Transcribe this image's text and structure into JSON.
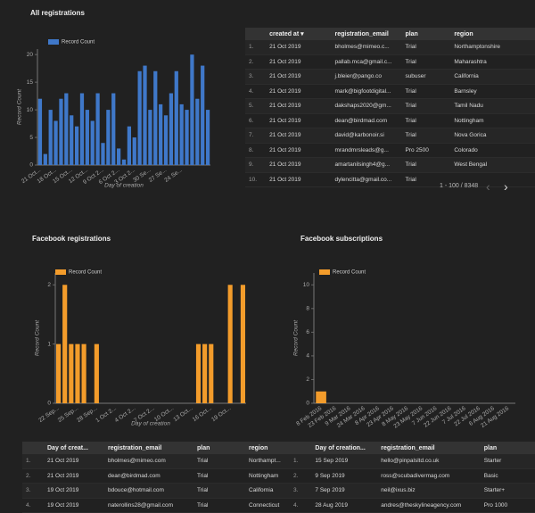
{
  "chart_data": [
    {
      "type": "bar",
      "title": "All registrations",
      "x_label": "Day of creation",
      "y_label": "Record Count",
      "legend": "top-left",
      "categories": [
        "21 Oct...",
        null,
        null,
        "18 Oct...",
        null,
        null,
        "15 Oct...",
        null,
        null,
        "12 Oct...",
        null,
        null,
        "9 Oct 2...",
        null,
        null,
        "6 Oct 2...",
        null,
        null,
        "3 Oct 2...",
        null,
        null,
        "30 Se...",
        null,
        null,
        "27 Se...",
        null,
        null,
        "24 Se...",
        null,
        null,
        null,
        null,
        null
      ],
      "series": [
        {
          "name": "Record Count",
          "color": "#3f78c9",
          "values": [
            12,
            2,
            10,
            8,
            12,
            13,
            9,
            7,
            13,
            10,
            8,
            13,
            4,
            10,
            13,
            3,
            1,
            7,
            5,
            17,
            18,
            10,
            17,
            11,
            9,
            13,
            17,
            11,
            10,
            20,
            12,
            18,
            10
          ]
        }
      ],
      "ylim": [
        0,
        21
      ],
      "yticks": [
        0,
        5,
        10,
        15,
        20
      ]
    },
    {
      "type": "bar",
      "title": "Facebook registrations",
      "x_label": "Day of creation",
      "y_label": "Record Count",
      "legend": "top-left",
      "categories": [
        "22 Sep...",
        null,
        null,
        "25 Sep...",
        null,
        null,
        "28 Sep...",
        null,
        null,
        "1 Oct 2...",
        null,
        null,
        "4 Oct 2...",
        null,
        null,
        "7 Oct 2...",
        null,
        null,
        "10 Oct...",
        null,
        null,
        "13 Oct...",
        null,
        null,
        "16 Oct...",
        null,
        null,
        "19 Oct...",
        null,
        null
      ],
      "series": [
        {
          "name": "Record Count",
          "color": "#f39c2b",
          "values": [
            1,
            2,
            1,
            1,
            1,
            0,
            1,
            0,
            0,
            0,
            0,
            0,
            0,
            0,
            0,
            0,
            0,
            0,
            0,
            0,
            0,
            0,
            1,
            1,
            1,
            0,
            0,
            2,
            0,
            2
          ]
        }
      ],
      "ylim": [
        0,
        2.2
      ],
      "yticks": [
        0,
        1,
        2
      ]
    },
    {
      "type": "bar",
      "title": "Facebook subscriptions",
      "y_label": "Record Count",
      "legend": "top-left",
      "categories": [
        "8 Feb 2016",
        "23 Feb 2016",
        "9 Mar 2016",
        "24 Mar 2016",
        "8 Apr 2016",
        "23 Apr 2016",
        "8 May 2016",
        "23 May 2016",
        "7 Jun 2016",
        "22 Jun 2016",
        "7 Jul 2016",
        "22 Jul 2016",
        "6 Aug 2016",
        "21 Aug 2016"
      ],
      "series": [
        {
          "name": "Record Count",
          "color": "#f39c2b",
          "values": [
            1,
            0,
            0,
            0,
            0,
            0,
            0,
            0,
            0,
            0,
            0,
            0,
            0,
            0
          ]
        }
      ],
      "ylim": [
        0,
        11
      ],
      "yticks": [
        0,
        2,
        4,
        6,
        8,
        10
      ]
    }
  ],
  "tables": [
    {
      "columns": [
        "created at",
        "registration_email",
        "plan",
        "region"
      ],
      "rows": [
        [
          "1.",
          "21 Oct 2019",
          "bholmes@mimeo.c...",
          "Trial",
          "Northamptonshire"
        ],
        [
          "2.",
          "21 Oct 2019",
          "pallab.mca@gmail.c...",
          "Trial",
          "Maharashtra"
        ],
        [
          "3.",
          "21 Oct 2019",
          "j.bleier@pango.co",
          "subuser",
          "California"
        ],
        [
          "4.",
          "21 Oct 2019",
          "mark@bigfootdigital...",
          "Trial",
          "Barnsley"
        ],
        [
          "5.",
          "21 Oct 2019",
          "dakshaps2020@gm...",
          "Trial",
          "Tamil Nadu"
        ],
        [
          "6.",
          "21 Oct 2019",
          "dean@birdmad.com",
          "Trial",
          "Nottingham"
        ],
        [
          "7.",
          "21 Oct 2019",
          "david@karbonoir.si",
          "Trial",
          "Nova Gorica"
        ],
        [
          "8.",
          "21 Oct 2019",
          "mrandmrsleads@g...",
          "Pro 2500",
          "Colorado"
        ],
        [
          "9.",
          "21 Oct 2019",
          "amartanilsingh4@g...",
          "Trial",
          "West Bengal"
        ],
        [
          "10.",
          "21 Oct 2019",
          "dylencitta@gmail.co...",
          "Trial",
          null
        ]
      ],
      "pagination": "1 - 100 / 8348"
    },
    {
      "columns": [
        "Day of creat...",
        "registration_email",
        "plan",
        "region"
      ],
      "rows": [
        [
          "1.",
          "21 Oct 2019",
          "bholmes@mimeo.com",
          "Trial",
          "Northampt..."
        ],
        [
          "2.",
          "21 Oct 2019",
          "dean@birdmad.com",
          "Trial",
          "Nottingham"
        ],
        [
          "3.",
          "19 Oct 2019",
          "bdouce@hotmail.com",
          "Trial",
          "California"
        ],
        [
          "4.",
          "19 Oct 2019",
          "naterollins28@gmail.com",
          "Trial",
          "Connecticut"
        ]
      ]
    },
    {
      "columns": [
        "Day of creation...",
        "registration_email",
        "plan"
      ],
      "rows": [
        [
          "1.",
          "15 Sep 2019",
          "hello@pinpalsltd.co.uk",
          "Starter"
        ],
        [
          "2.",
          "9 Sep 2019",
          "ross@scubadivermag.com",
          "Basic"
        ],
        [
          "3.",
          "7 Sep 2019",
          "neil@ixus.biz",
          "Starter+"
        ],
        [
          "4.",
          "28 Aug 2019",
          "andres@theskylineagency.com",
          "Pro 1000"
        ]
      ]
    }
  ]
}
